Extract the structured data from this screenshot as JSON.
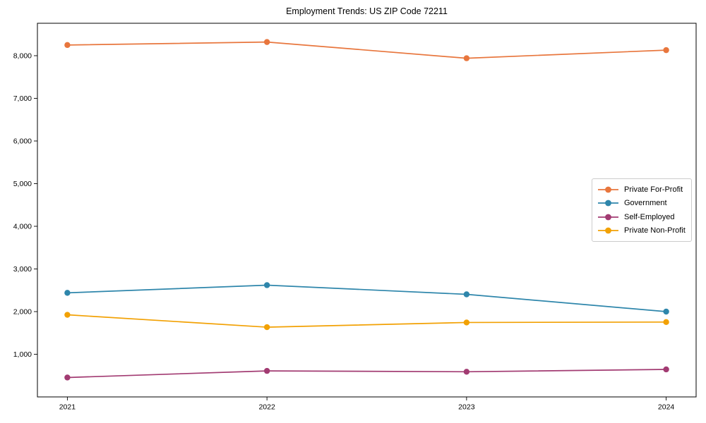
{
  "chart_data": {
    "type": "line",
    "title": "Employment Trends: US ZIP Code 72211",
    "xlabel": "",
    "ylabel": "",
    "x": [
      2021,
      2022,
      2023,
      2024
    ],
    "xtick_labels": [
      "2021",
      "2022",
      "2023",
      "2024"
    ],
    "series": [
      {
        "name": "Private For-Profit",
        "color": "#e8763d",
        "values": [
          8250,
          8320,
          7940,
          8130
        ]
      },
      {
        "name": "Government",
        "color": "#2e86ab",
        "values": [
          2440,
          2620,
          2405,
          2000
        ]
      },
      {
        "name": "Self-Employed",
        "color": "#a23b72",
        "values": [
          455,
          610,
          590,
          645
        ]
      },
      {
        "name": "Private Non-Profit",
        "color": "#f2a104",
        "values": [
          1925,
          1635,
          1745,
          1755
        ]
      }
    ],
    "yticks": [
      1000,
      2000,
      3000,
      4000,
      5000,
      6000,
      7000,
      8000
    ],
    "ytick_labels": [
      "1,000",
      "2,000",
      "3,000",
      "4,000",
      "5,000",
      "6,000",
      "7,000",
      "8,000"
    ],
    "ylim": [
      0,
      8760
    ],
    "xlim": [
      2020.85,
      2024.15
    ],
    "grid": false,
    "legend_position": "center-right",
    "marker": "circle",
    "axis_color": "#000000",
    "text_color": "#000000",
    "background_color": "#ffffff"
  }
}
